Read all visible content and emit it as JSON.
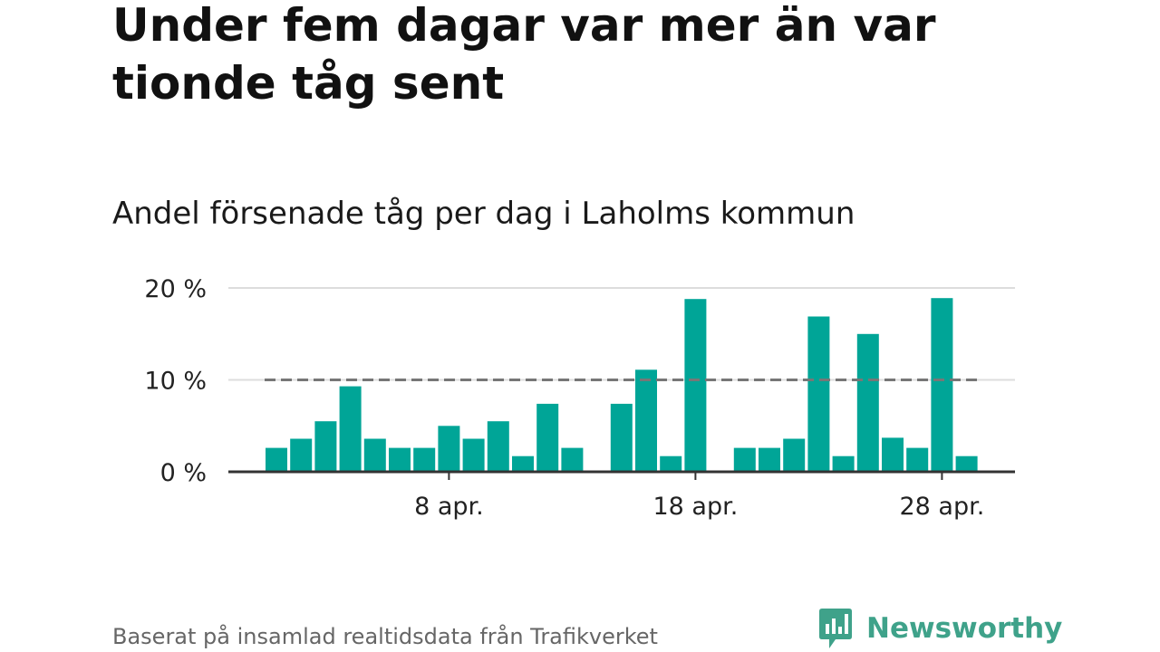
{
  "title": "Under fem dagar var mer än var tionde tåg sent",
  "subtitle": "Andel försenade tåg per dag i Laholms kommun",
  "source": "Baserat på insamlad realtidsdata från Trafikverket",
  "brand": "Newsworthy",
  "colors": {
    "bar": "#00a597",
    "brand": "#3fa28a",
    "reference_line": "#777777",
    "gridline": "#dddddd",
    "axis": "#333333"
  },
  "chart_data": {
    "type": "bar",
    "title": "Andel försenade tåg per dag i Laholms kommun",
    "xlabel": "",
    "ylabel": "",
    "ylim": [
      0,
      20
    ],
    "yticks": [
      0,
      10,
      20
    ],
    "ytick_labels": [
      "0 %",
      "10 %",
      "20 %"
    ],
    "x_tick_labels": [
      {
        "day": 8,
        "label": "8 apr."
      },
      {
        "day": 18,
        "label": "18 apr."
      },
      {
        "day": 28,
        "label": "28 apr."
      }
    ],
    "reference_line": {
      "value": 10,
      "style": "dashed"
    },
    "grid": true,
    "days": [
      1,
      2,
      3,
      4,
      5,
      6,
      7,
      8,
      9,
      10,
      11,
      12,
      13,
      14,
      15,
      16,
      17,
      18,
      19,
      20,
      21,
      22,
      23,
      24,
      25,
      26,
      27,
      28,
      29
    ],
    "values": [
      2.6,
      3.6,
      5.5,
      9.3,
      3.6,
      2.6,
      2.6,
      5.0,
      3.6,
      5.5,
      1.7,
      7.4,
      2.6,
      null,
      7.4,
      11.1,
      1.7,
      18.8,
      null,
      2.6,
      2.6,
      3.6,
      16.9,
      1.7,
      15.0,
      3.7,
      2.6,
      18.9,
      1.7
    ]
  }
}
